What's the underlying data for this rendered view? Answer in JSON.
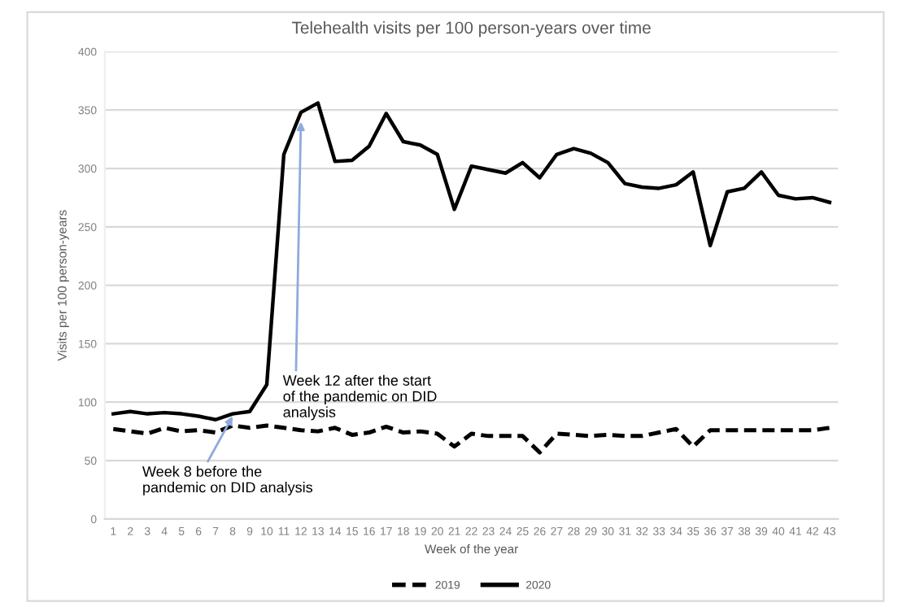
{
  "chart_data": {
    "type": "line",
    "title": "Telehealth visits per 100 person-years over time",
    "xlabel": "Week of the year",
    "ylabel": "Visits per 100 person-years",
    "categories": [
      "1",
      "2",
      "3",
      "4",
      "5",
      "6",
      "7",
      "8",
      "9",
      "10",
      "11",
      "12",
      "13",
      "14",
      "15",
      "16",
      "17",
      "18",
      "19",
      "20",
      "21",
      "22",
      "23",
      "24",
      "25",
      "26",
      "27",
      "28",
      "29",
      "30",
      "31",
      "32",
      "33",
      "34",
      "35",
      "36",
      "37",
      "38",
      "39",
      "40",
      "41",
      "42",
      "43"
    ],
    "series": [
      {
        "name": "2019",
        "color": "#000000",
        "line_style": "dashed",
        "values": [
          77,
          75,
          73,
          78,
          75,
          76,
          74,
          80,
          78,
          80,
          78,
          76,
          75,
          78,
          72,
          74,
          79,
          74,
          75,
          73,
          62,
          73,
          71,
          71,
          71,
          57,
          73,
          72,
          71,
          72,
          71,
          71,
          74,
          77,
          62,
          76,
          76,
          76,
          76,
          76,
          76,
          76,
          78
        ]
      },
      {
        "name": "2020",
        "color": "#000000",
        "line_style": "solid",
        "values": [
          90,
          92,
          90,
          91,
          90,
          88,
          85,
          90,
          92,
          115,
          312,
          348,
          356,
          306,
          307,
          319,
          347,
          323,
          320,
          312,
          265,
          302,
          299,
          296,
          305,
          292,
          312,
          317,
          313,
          305,
          287,
          284,
          283,
          286,
          297,
          234,
          280,
          283,
          297,
          277,
          274,
          275,
          271
        ]
      }
    ],
    "ylim": [
      0,
      400
    ],
    "yticks": [
      0,
      50,
      100,
      150,
      200,
      250,
      300,
      350,
      400
    ],
    "grid": "y",
    "legend": "bottom",
    "marker": "none",
    "annotations": [
      {
        "text": "Week 12 after the start\nof the pandemic on DID\nanalysis",
        "x": "12",
        "y": 340
      },
      {
        "text": "Week 8 before the\npandemic on DID analysis",
        "x": "8",
        "y": 88
      }
    ]
  }
}
